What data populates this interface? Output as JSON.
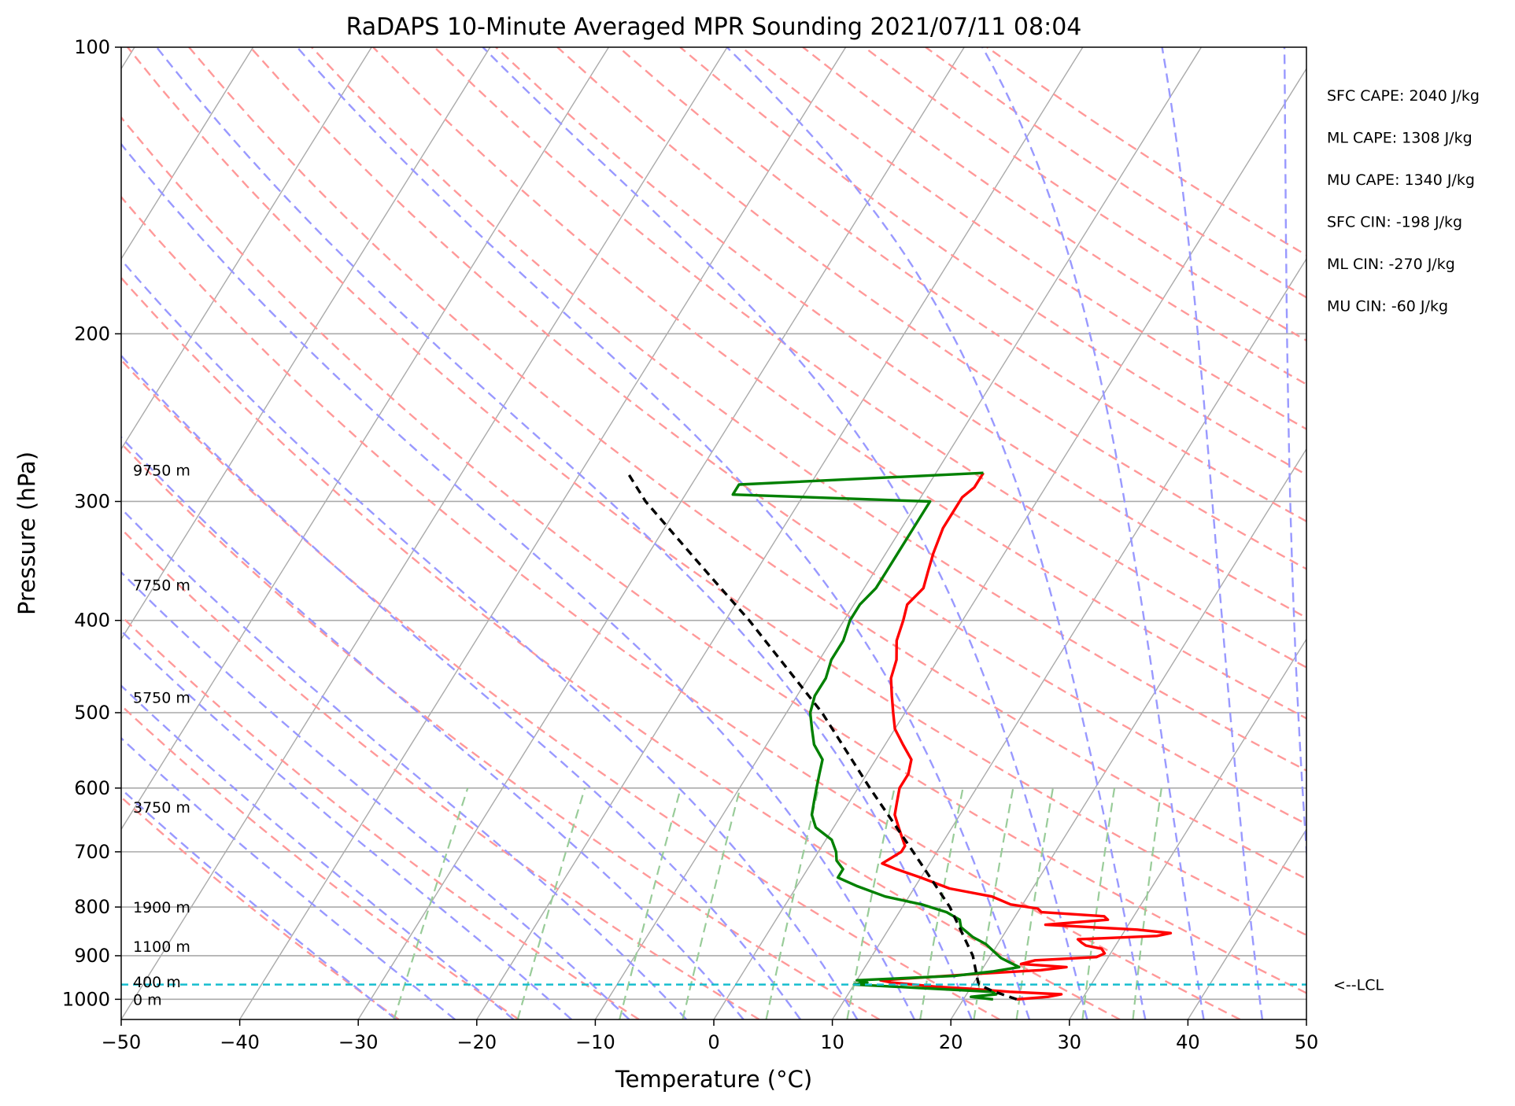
{
  "title": "RaDAPS 10-Minute Averaged MPR Sounding 2021/07/11 08:04",
  "chart_data": {
    "type": "skew-t",
    "title": "RaDAPS 10-Minute Averaged MPR Sounding 2021/07/11 08:04",
    "xlabel": "Temperature (°C)",
    "ylabel": "Pressure (hPa)",
    "xlim": [
      -50,
      50
    ],
    "ylim": [
      1050,
      100
    ],
    "y_scale": "log",
    "grid": true,
    "x_ticks": [
      -50,
      -40,
      -30,
      -20,
      -10,
      0,
      10,
      20,
      30,
      40,
      50
    ],
    "x_tick_labels": [
      "−50",
      "−40",
      "−30",
      "−20",
      "−10",
      "0",
      "10",
      "20",
      "30",
      "40",
      "50"
    ],
    "y_ticks": [
      100,
      200,
      300,
      400,
      500,
      600,
      700,
      800,
      900,
      1000
    ],
    "y_tick_labels": [
      "100",
      "200",
      "300",
      "400",
      "500",
      "600",
      "700",
      "800",
      "900",
      "1000"
    ],
    "height_labels": [
      {
        "text": "9750 m",
        "p": 278
      },
      {
        "text": "7750 m",
        "p": 367
      },
      {
        "text": "5750 m",
        "p": 482
      },
      {
        "text": "3750 m",
        "p": 628
      },
      {
        "text": "1900 m",
        "p": 800
      },
      {
        "text": "1100 m",
        "p": 880
      },
      {
        "text": "400 m",
        "p": 958
      },
      {
        "text": "0 m",
        "p": 1000
      }
    ],
    "stats": [
      "SFC CAPE: 2040 J/kg",
      "ML CAPE: 1308 J/kg",
      "MU CAPE: 1340 J/kg",
      "SFC CIN: -198 J/kg",
      "ML CIN: -270 J/kg",
      "MU CIN: -60 J/kg"
    ],
    "lcl": {
      "label": "<--LCL",
      "p": 965,
      "color": "#17becf"
    },
    "colors": {
      "temperature": "#ff0000",
      "dewpoint": "#008000",
      "parcel": "#000000",
      "dry_adiabats": "#ff9999",
      "moist_adiabats": "#9999ff",
      "mixing_ratio": "#99cc99",
      "isotherms": "#aaaaaa",
      "isobars": "#aaaaaa"
    },
    "series": [
      {
        "role": "temperature",
        "points": [
          [
            1000,
            24.5
          ],
          [
            994,
            27
          ],
          [
            988,
            28
          ],
          [
            982,
            23.5
          ],
          [
            975,
            20
          ],
          [
            970,
            17
          ],
          [
            960,
            13
          ],
          [
            955,
            12
          ],
          [
            940,
            20
          ],
          [
            932,
            25
          ],
          [
            925,
            27
          ],
          [
            918,
            23
          ],
          [
            910,
            24
          ],
          [
            903,
            29
          ],
          [
            895,
            29.5
          ],
          [
            885,
            29
          ],
          [
            878,
            27.5
          ],
          [
            872,
            27
          ],
          [
            865,
            26.5
          ],
          [
            858,
            33
          ],
          [
            852,
            34
          ],
          [
            845,
            31
          ],
          [
            835,
            23
          ],
          [
            825,
            28
          ],
          [
            818,
            27.5
          ],
          [
            810,
            22
          ],
          [
            803,
            21.5
          ],
          [
            795,
            19
          ],
          [
            780,
            17
          ],
          [
            765,
            13
          ],
          [
            745,
            10
          ],
          [
            730,
            7.5
          ],
          [
            720,
            6
          ],
          [
            700,
            7
          ],
          [
            690,
            7
          ],
          [
            680,
            6.5
          ],
          [
            660,
            5.5
          ],
          [
            640,
            4.5
          ],
          [
            620,
            4
          ],
          [
            600,
            3.5
          ],
          [
            580,
            3.5
          ],
          [
            560,
            3
          ],
          [
            540,
            1.5
          ],
          [
            520,
            0
          ],
          [
            500,
            -1
          ],
          [
            480,
            -2
          ],
          [
            460,
            -3
          ],
          [
            440,
            -3.5
          ],
          [
            420,
            -4.5
          ],
          [
            400,
            -5
          ],
          [
            385,
            -5.5
          ],
          [
            370,
            -5
          ],
          [
            355,
            -5.5
          ],
          [
            340,
            -6
          ],
          [
            320,
            -6.5
          ],
          [
            305,
            -6.5
          ],
          [
            297,
            -6.5
          ],
          [
            290,
            -6
          ],
          [
            280,
            -6
          ]
        ]
      },
      {
        "role": "dewpoint",
        "points": [
          [
            1000,
            22.5
          ],
          [
            994,
            20.5
          ],
          [
            988,
            22.5
          ],
          [
            982,
            22
          ],
          [
            972,
            15
          ],
          [
            965,
            10
          ],
          [
            960,
            11
          ],
          [
            955,
            10
          ],
          [
            945,
            18
          ],
          [
            935,
            21
          ],
          [
            925,
            23
          ],
          [
            915,
            22
          ],
          [
            905,
            21
          ],
          [
            890,
            20
          ],
          [
            875,
            19
          ],
          [
            860,
            17.5
          ],
          [
            840,
            16
          ],
          [
            825,
            15.5
          ],
          [
            810,
            14
          ],
          [
            795,
            11.5
          ],
          [
            780,
            8
          ],
          [
            760,
            5
          ],
          [
            745,
            3
          ],
          [
            730,
            3
          ],
          [
            715,
            2
          ],
          [
            700,
            1.5
          ],
          [
            680,
            0.5
          ],
          [
            660,
            -1.5
          ],
          [
            640,
            -2.5
          ],
          [
            620,
            -3
          ],
          [
            600,
            -3.5
          ],
          [
            580,
            -4
          ],
          [
            560,
            -4.5
          ],
          [
            540,
            -6
          ],
          [
            520,
            -7
          ],
          [
            500,
            -8
          ],
          [
            480,
            -8.5
          ],
          [
            460,
            -8.5
          ],
          [
            440,
            -9
          ],
          [
            420,
            -9
          ],
          [
            400,
            -9.5
          ],
          [
            385,
            -9.5
          ],
          [
            370,
            -9
          ],
          [
            355,
            -9
          ],
          [
            340,
            -9
          ],
          [
            320,
            -9
          ],
          [
            300,
            -9
          ],
          [
            295,
            -26
          ],
          [
            288,
            -26
          ],
          [
            280,
            -6
          ]
        ]
      },
      {
        "role": "parcel",
        "points": [
          [
            1000,
            24.5
          ],
          [
            980,
            22
          ],
          [
            965,
            20.5
          ],
          [
            900,
            18.5
          ],
          [
            800,
            14
          ],
          [
            700,
            8
          ],
          [
            600,
            1
          ],
          [
            500,
            -7
          ],
          [
            400,
            -18
          ],
          [
            350,
            -25
          ],
          [
            300,
            -33
          ],
          [
            280,
            -36
          ]
        ]
      }
    ]
  }
}
